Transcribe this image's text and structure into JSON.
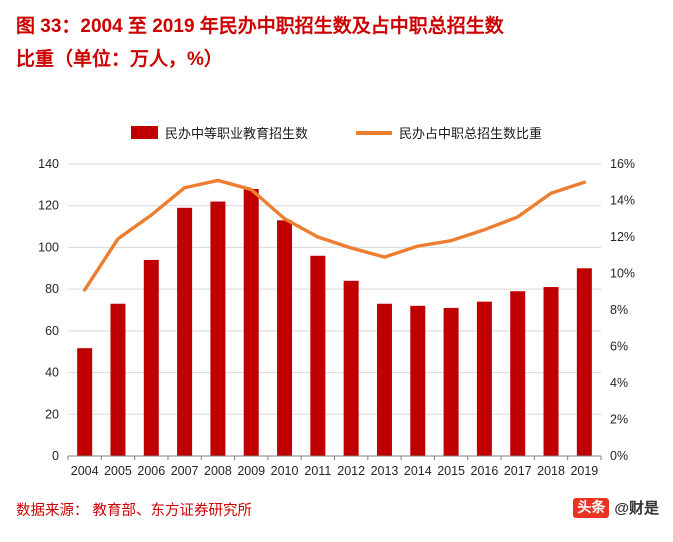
{
  "title": {
    "line1": "图 33：2004 至 2019 年民办中职招生数及占中职总招生数",
    "line2": "比重（单位：万人，%）"
  },
  "legend": [
    {
      "label": "民办中等职业教育招生数"
    },
    {
      "label": "民办占中职总招生数比重"
    }
  ],
  "chart_data": {
    "type": "combo",
    "categories": [
      "2004",
      "2005",
      "2006",
      "2007",
      "2008",
      "2009",
      "2010",
      "2011",
      "2012",
      "2013",
      "2014",
      "2015",
      "2016",
      "2017",
      "2018",
      "2019"
    ],
    "series": [
      {
        "name": "民办中等职业教育招生数",
        "type": "bar",
        "axis": "left",
        "color": "#C00000",
        "values": [
          51.7,
          73,
          94,
          119,
          122,
          128,
          113,
          96,
          84,
          73,
          72,
          71,
          74,
          79,
          81,
          90
        ]
      },
      {
        "name": "民办占中职总招生数比重",
        "type": "line",
        "axis": "right",
        "color": "#ED7D31",
        "values": [
          9.1,
          11.9,
          13.2,
          14.7,
          15.1,
          14.6,
          13.0,
          12.0,
          11.4,
          10.9,
          11.5,
          11.8,
          12.4,
          13.1,
          14.4,
          15.0
        ]
      }
    ],
    "left_axis": {
      "min": 0,
      "max": 140,
      "step": 20,
      "ticks": [
        "0",
        "20",
        "40",
        "60",
        "80",
        "100",
        "120",
        "140"
      ]
    },
    "right_axis": {
      "min": 0,
      "max": 16,
      "step": 2,
      "ticks": [
        "0%",
        "2%",
        "4%",
        "6%",
        "8%",
        "10%",
        "12%",
        "14%",
        "16%"
      ]
    },
    "grid": true,
    "legend_position": "top",
    "grid_color": "#D9D9D9",
    "axis_line_color": "#7F7F7F"
  },
  "footer": {
    "source": "数据来源： 教育部、东方证券研究所"
  },
  "watermark": {
    "badge": "头条",
    "handle": "@财是"
  }
}
